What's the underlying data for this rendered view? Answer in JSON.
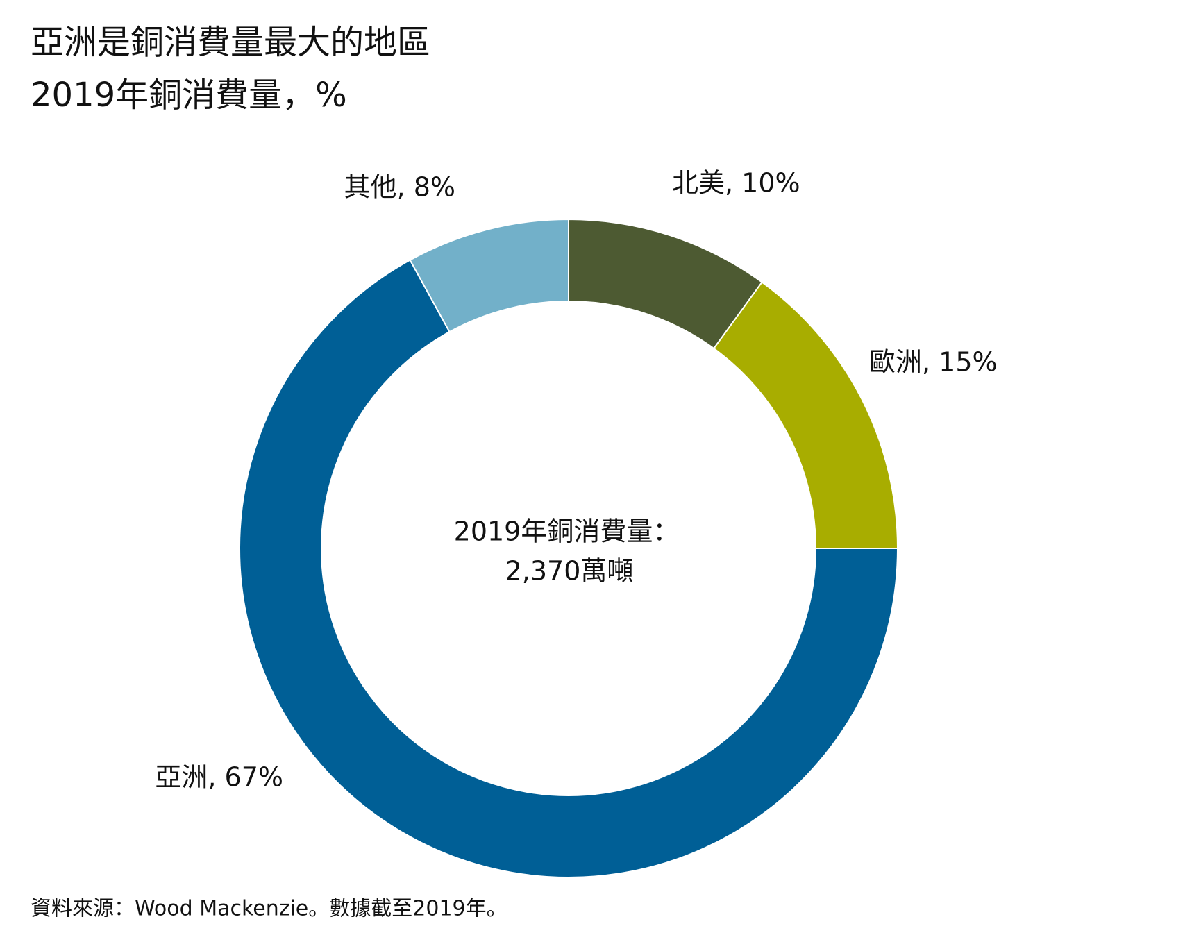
{
  "chart_data": {
    "type": "donut",
    "title": "亞洲是銅消費量最大的地區",
    "subtitle": "2019年銅消費量，%",
    "categories": [
      "北美",
      "歐洲",
      "亞洲",
      "其他"
    ],
    "values": [
      10,
      15,
      67,
      8
    ],
    "value_labels": [
      "北美, 10%",
      "歐洲, 15%",
      "亞洲, 67%",
      "其他, 8%"
    ],
    "colors": [
      "#4d5a32",
      "#a8ad00",
      "#005f96",
      "#72b0c9"
    ],
    "center_text": [
      "2019年銅消費量：",
      "2,370萬噸"
    ],
    "source": "資料來源：Wood Mackenzie。數據截至2019年。"
  }
}
